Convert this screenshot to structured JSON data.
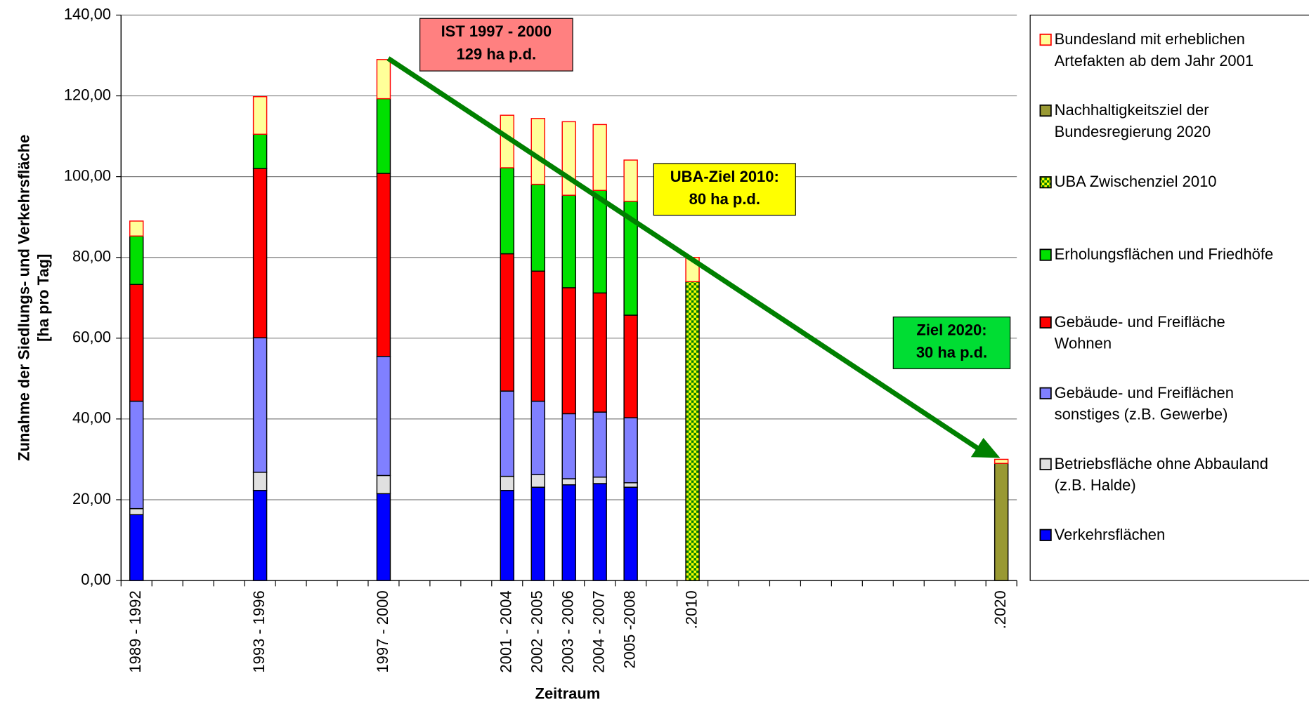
{
  "chart_data": {
    "type": "stacked_bar",
    "x_label": "Zeitraum",
    "y_label": [
      "Zunahme der Siedlungs- und Verkehrsfläche",
      "[ha pro Tag]"
    ],
    "categories": [
      "1989 - 1992",
      null,
      null,
      null,
      "1993 - 1996",
      null,
      null,
      null,
      "1997 - 2000",
      null,
      null,
      null,
      "2001 - 2004",
      "2002 - 2005",
      "2003 - 2006",
      "2004 - 2007",
      "2005 -2008",
      null,
      ".2010",
      null,
      null,
      null,
      null,
      null,
      null,
      null,
      null,
      null,
      ".2020"
    ],
    "ylim": [
      0,
      140
    ],
    "yticks": [
      {
        "value": 0,
        "label": "0,00"
      },
      {
        "value": 20,
        "label": "20,00"
      },
      {
        "value": 40,
        "label": "40,00"
      },
      {
        "value": 60,
        "label": "60,00"
      },
      {
        "value": 80,
        "label": "80,00"
      },
      {
        "value": 100,
        "label": "100,00"
      },
      {
        "value": 120,
        "label": "120,00"
      },
      {
        "value": 140,
        "label": "140,00"
      }
    ],
    "grid": true,
    "legend": "right",
    "series": [
      {
        "name": "Verkehrsflächen",
        "color": "#0000ff",
        "edgecolor": "#000000",
        "values": [
          16.3,
          null,
          null,
          null,
          22.3,
          null,
          null,
          null,
          21.5,
          null,
          null,
          null,
          22.3,
          23.1,
          23.7,
          24.0,
          23.1,
          null,
          null,
          null,
          null,
          null,
          null,
          null,
          null,
          null,
          null,
          null,
          null
        ]
      },
      {
        "name": "Betriebsfläche ohne Abbauland\n(z.B. Halde)",
        "color": "#e0e0e0",
        "edgecolor": "#000000",
        "values": [
          1.5,
          null,
          null,
          null,
          4.5,
          null,
          null,
          null,
          4.5,
          null,
          null,
          null,
          3.5,
          3.1,
          1.5,
          1.6,
          1.1,
          null,
          null,
          null,
          null,
          null,
          null,
          null,
          null,
          null,
          null,
          null,
          null
        ]
      },
      {
        "name": "Gebäude- und Freiflächen\nsonstiges (z.B. Gewerbe)",
        "color": "#8080ff",
        "edgecolor": "#000000",
        "values": [
          26.6,
          null,
          null,
          null,
          33.3,
          null,
          null,
          null,
          29.5,
          null,
          null,
          null,
          21.1,
          18.2,
          16.1,
          16.1,
          16.1,
          null,
          null,
          null,
          null,
          null,
          null,
          null,
          null,
          null,
          null,
          null,
          null
        ]
      },
      {
        "name": "Gebäude- und Freifläche\nWohnen",
        "color": "#ff0000",
        "edgecolor": "#000000",
        "values": [
          28.9,
          null,
          null,
          null,
          41.9,
          null,
          null,
          null,
          45.3,
          null,
          null,
          null,
          34.0,
          32.2,
          31.2,
          29.5,
          25.4,
          null,
          null,
          null,
          null,
          null,
          null,
          null,
          null,
          null,
          null,
          null,
          null
        ]
      },
      {
        "name": "Erholungsflächen und Friedhöfe",
        "color": "#00e000",
        "edgecolor": "#000000",
        "values": [
          12.0,
          null,
          null,
          null,
          8.5,
          null,
          null,
          null,
          18.5,
          null,
          null,
          null,
          21.3,
          21.5,
          22.9,
          25.4,
          28.2,
          null,
          null,
          null,
          null,
          null,
          null,
          null,
          null,
          null,
          null,
          null,
          null
        ]
      },
      {
        "name": "UBA Zwischenziel 2010",
        "color": "#008000",
        "hatch_color": "#ffff00",
        "edgecolor": "#000000",
        "values": [
          null,
          null,
          null,
          null,
          null,
          null,
          null,
          null,
          null,
          null,
          null,
          null,
          null,
          null,
          null,
          null,
          null,
          null,
          74,
          null,
          null,
          null,
          null,
          null,
          null,
          null,
          null,
          null,
          null
        ]
      },
      {
        "name": "Nachhaltigkeitsziel der\nBundesregierung 2020",
        "color": "#999933",
        "edgecolor": "#000000",
        "values": [
          null,
          null,
          null,
          null,
          null,
          null,
          null,
          null,
          null,
          null,
          null,
          null,
          null,
          null,
          null,
          null,
          null,
          null,
          null,
          null,
          null,
          null,
          null,
          null,
          null,
          null,
          null,
          null,
          29
        ]
      },
      {
        "name": "Bundesland mit erheblichen\nArtefakten ab dem Jahr 2001",
        "color": "#ffff99",
        "edgecolor": "#ff0000",
        "values": [
          3.7,
          null,
          null,
          null,
          9.3,
          null,
          null,
          null,
          9.7,
          null,
          null,
          null,
          13.0,
          16.3,
          18.2,
          16.3,
          10.2,
          null,
          6,
          null,
          null,
          null,
          null,
          null,
          null,
          null,
          null,
          null,
          1
        ]
      }
    ],
    "annotations": [
      {
        "text": [
          "IST 1997 - 2000",
          "129 ha p.d."
        ],
        "color": "#ff8080"
      },
      {
        "text": [
          "UBA-Ziel 2010:",
          "80 ha p.d."
        ],
        "color": "#ffff00"
      },
      {
        "text": [
          "Ziel 2020:",
          "30 ha p.d."
        ],
        "color": "#00dd33"
      }
    ],
    "arrow_color": "#008000"
  }
}
